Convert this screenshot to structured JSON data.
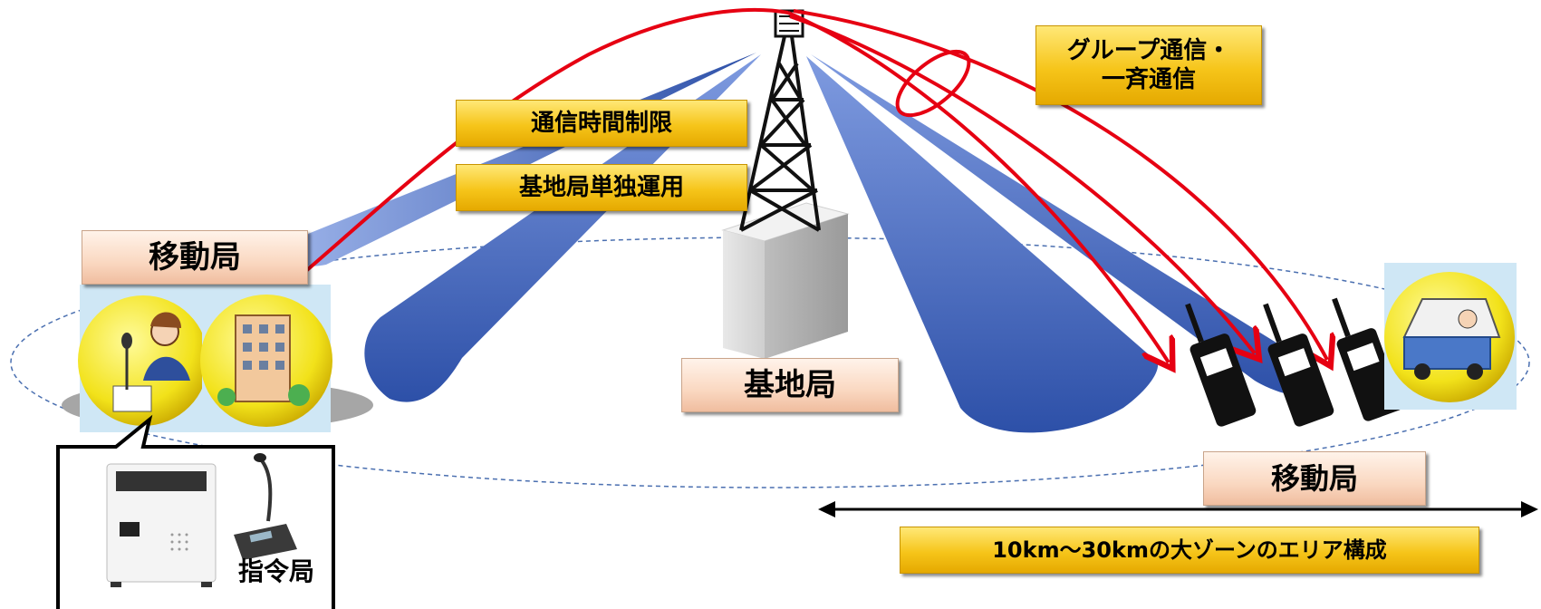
{
  "labels": {
    "group_comm": "グループ通信・\n一斉通信",
    "time_limit": "通信時間制限",
    "standalone": "基地局単独運用",
    "mobile_left": "移動局",
    "base_station": "基地局",
    "mobile_right": "移動局",
    "area": "10km～30kmの大ゾーンのエリア構成",
    "command_station": "指令局"
  },
  "icons": {
    "tower": "radio-tower-icon",
    "operator": "dispatcher-operator-icon",
    "building": "office-building-icon",
    "truck": "truck-driver-icon",
    "radio": "handheld-radio-icon",
    "console": "dispatch-console-icon",
    "microphone": "desk-microphone-icon"
  },
  "colors": {
    "arrow": "#e60012",
    "beam": "#3a62b8",
    "label_gold": "#f6c51a",
    "label_peach": "#fad8c1"
  }
}
